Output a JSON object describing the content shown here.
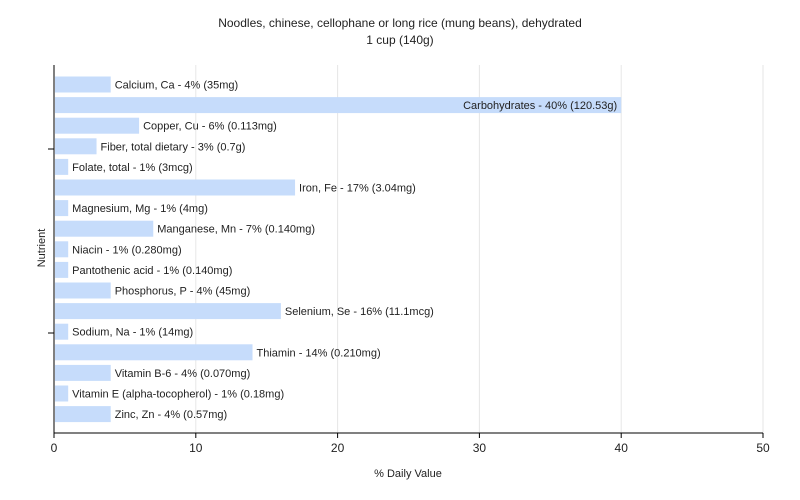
{
  "chart_data": {
    "type": "bar",
    "orientation": "horizontal",
    "title": "Noodles, chinese, cellophane or long rice (mung beans), dehydrated",
    "subtitle": "1 cup (140g)",
    "xlabel": "% Daily Value",
    "ylabel": "Nutrient",
    "xlim": [
      0,
      50
    ],
    "xticks": [
      "0",
      "10",
      "20",
      "30",
      "40",
      "50"
    ],
    "grid": true,
    "colors": {
      "bar": "#c6dcfb",
      "grid": "#e6e6e6",
      "axis": "#000000"
    },
    "bars": [
      {
        "category": "Calcium, Ca",
        "value": 4,
        "label": "Calcium, Ca - 4% (35mg)"
      },
      {
        "category": "Carbohydrates",
        "value": 40,
        "label": "Carbohydrates - 40% (120.53g)"
      },
      {
        "category": "Copper, Cu",
        "value": 6,
        "label": "Copper, Cu - 6% (0.113mg)"
      },
      {
        "category": "Fiber, total dietary",
        "value": 3,
        "label": "Fiber, total dietary - 3% (0.7g)"
      },
      {
        "category": "Folate, total",
        "value": 1,
        "label": "Folate, total - 1% (3mcg)"
      },
      {
        "category": "Iron, Fe",
        "value": 17,
        "label": "Iron, Fe - 17% (3.04mg)"
      },
      {
        "category": "Magnesium, Mg",
        "value": 1,
        "label": "Magnesium, Mg - 1% (4mg)"
      },
      {
        "category": "Manganese, Mn",
        "value": 7,
        "label": "Manganese, Mn - 7% (0.140mg)"
      },
      {
        "category": "Niacin",
        "value": 1,
        "label": "Niacin - 1% (0.280mg)"
      },
      {
        "category": "Pantothenic acid",
        "value": 1,
        "label": "Pantothenic acid - 1% (0.140mg)"
      },
      {
        "category": "Phosphorus, P",
        "value": 4,
        "label": "Phosphorus, P - 4% (45mg)"
      },
      {
        "category": "Selenium, Se",
        "value": 16,
        "label": "Selenium, Se - 16% (11.1mcg)"
      },
      {
        "category": "Sodium, Na",
        "value": 1,
        "label": "Sodium, Na - 1% (14mg)"
      },
      {
        "category": "Thiamin",
        "value": 14,
        "label": "Thiamin - 14% (0.210mg)"
      },
      {
        "category": "Vitamin B-6",
        "value": 4,
        "label": "Vitamin B-6 - 4% (0.070mg)"
      },
      {
        "category": "Vitamin E (alpha-tocopherol)",
        "value": 1,
        "label": "Vitamin E (alpha-tocopherol) - 1% (0.18mg)"
      },
      {
        "category": "Zinc, Zn",
        "value": 4,
        "label": "Zinc, Zn - 4% (0.57mg)"
      }
    ]
  }
}
